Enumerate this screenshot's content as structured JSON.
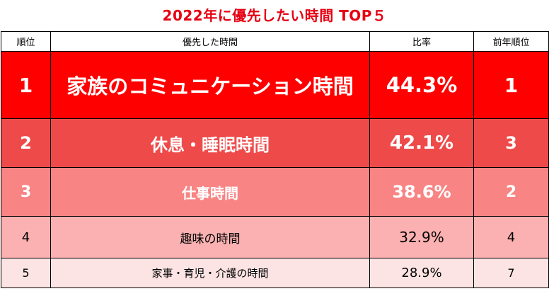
{
  "title": "2022年に優先したい時間 TOP５",
  "header": {
    "rank": "順位",
    "label": "優先した時間",
    "ratio": "比率",
    "prev_rank": "前年順位"
  },
  "rows": [
    {
      "rank": "1",
      "label": "家族のコミュニケーション時間",
      "ratio": "44.3%",
      "prev_rank": "1"
    },
    {
      "rank": "2",
      "label": "休息・睡眠時間",
      "ratio": "42.1%",
      "prev_rank": "3"
    },
    {
      "rank": "3",
      "label": "仕事時間",
      "ratio": "38.6%",
      "prev_rank": "2"
    },
    {
      "rank": "4",
      "label": "趣味の時間",
      "ratio": "32.9%",
      "prev_rank": "4"
    },
    {
      "rank": "5",
      "label": "家事・育児・介護の時間",
      "ratio": "28.9%",
      "prev_rank": "7"
    }
  ],
  "colors": {
    "title": "#e60012",
    "row1": "#ff0000",
    "row2": "#ef4a4a",
    "row3": "#f88484",
    "row4": "#fbb1b1",
    "row5": "#fde4e4"
  }
}
